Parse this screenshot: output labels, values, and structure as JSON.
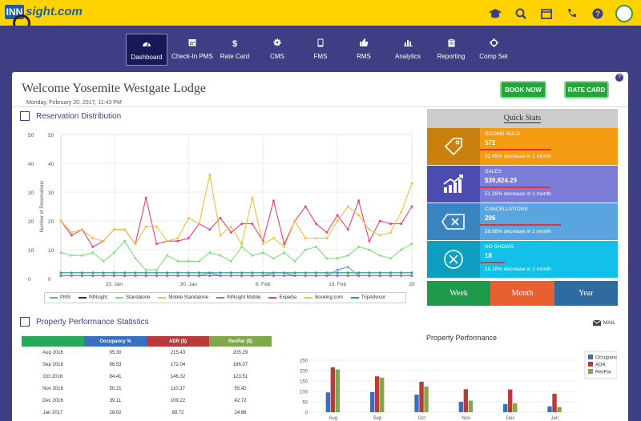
{
  "app": {
    "logo_box": "INN",
    "logo_word": "sight.com"
  },
  "nav": [
    {
      "label": "Dashboard",
      "icon": "dashboard-icon"
    },
    {
      "label": "Check-In PMS",
      "icon": "calendar-icon"
    },
    {
      "label": "Rate Card",
      "icon": "dollar-icon"
    },
    {
      "label": "CMS",
      "icon": "gear-icon"
    },
    {
      "label": "FMS",
      "icon": "tablet-icon"
    },
    {
      "label": "RMS",
      "icon": "thumbs-up-icon"
    },
    {
      "label": "Analytics",
      "icon": "bar-chart-icon"
    },
    {
      "label": "Reporting",
      "icon": "clipboard-icon"
    },
    {
      "label": "Comp Set",
      "icon": "crosshair-icon"
    }
  ],
  "header": {
    "welcome": "Welcome Yosemite Westgate Lodge",
    "date": "Monday, February 20, 2017, 11:43 PM",
    "book_now": "BOOK NOW",
    "rate_card": "RATE CARD",
    "help": "?"
  },
  "reservation": {
    "title": "Reservation Distribution",
    "ylabel": "Number of Reservations"
  },
  "quick_stats": {
    "title": "Quick Stats",
    "items": [
      {
        "label": "ROOMS SOLD",
        "value": "572",
        "change": "52.45% decrease in 1 month",
        "color": "#f39c12",
        "dark": "#c9800f",
        "icon": "tag-icon",
        "fill": 0.52
      },
      {
        "label": "SALES",
        "value": "$39,824.29",
        "change": "51.39% decrease in 1 month",
        "color": "#7b7bd8",
        "dark": "#4b4bb0",
        "icon": "growth-chart-icon",
        "fill": 0.51
      },
      {
        "label": "CANCELLATIONS",
        "value": "206",
        "change": "58.88% decrease in 1 month",
        "color": "#5aa5e0",
        "dark": "#3a85c0",
        "icon": "cancel-tag-icon",
        "fill": 0.59
      },
      {
        "label": "NO SHOWS",
        "value": "18",
        "change": "18.18% decrease in 1 month",
        "color": "#12c0e8",
        "dark": "#0e9ec0",
        "icon": "no-show-icon",
        "fill": 0.18
      }
    ],
    "tabs": [
      {
        "label": "Week",
        "color": "#1f9a4a"
      },
      {
        "label": "Month",
        "color": "#e86030"
      },
      {
        "label": "Year",
        "color": "#2e6ba0"
      }
    ]
  },
  "performance": {
    "title": "Property Performance Statistics",
    "mail": "MAIL",
    "columns": [
      "",
      "Occupancy %",
      "ADR ($)",
      "RevPar ($)"
    ],
    "column_colors": [
      "#28a85a",
      "#3a6fbf",
      "#b83a3a",
      "#7fa84a"
    ],
    "rows": [
      [
        "Aug 2016",
        "95.30",
        "215.43",
        "205.29"
      ],
      [
        "Sep 2016",
        "96.53",
        "172.04",
        "166.07"
      ],
      [
        "Oct 2016",
        "84.41",
        "146.32",
        "123.51"
      ],
      [
        "Nov 2016",
        "50.21",
        "110.37",
        "55.42"
      ],
      [
        "Dec 2016",
        "39.11",
        "109.22",
        "42.72"
      ],
      [
        "Jan 2017",
        "28.02",
        "88.72",
        "24.86"
      ]
    ]
  },
  "chart_data": [
    {
      "type": "line",
      "ylabel": "Number of Reservations",
      "ylim": [
        0,
        50
      ],
      "y_ticks": [
        0,
        10,
        20,
        30,
        40,
        50
      ],
      "x_tick_labels": [
        "23. Jan",
        "30. Jan",
        "6. Feb",
        "13. Feb",
        "20"
      ],
      "x_tick_positions": [
        5,
        12,
        19,
        26,
        33
      ],
      "grid": true,
      "legend_position": "bottom",
      "series": [
        {
          "name": "PMS",
          "color": "#5aa5e0",
          "values": [
            1,
            1,
            1,
            1,
            1,
            1,
            1,
            1,
            1,
            1,
            1,
            1,
            1,
            1,
            2,
            1,
            1,
            1,
            1,
            1,
            2,
            2,
            1,
            1,
            1,
            1,
            3,
            4,
            1,
            1,
            1,
            1,
            1,
            1
          ]
        },
        {
          "name": "INNsight",
          "color": "#333333",
          "values": [
            1,
            1,
            1,
            1,
            1,
            1,
            1,
            1,
            1,
            1,
            1,
            1,
            1,
            1,
            1,
            1,
            1,
            1,
            1,
            1,
            1,
            1,
            1,
            1,
            1,
            1,
            1,
            1,
            1,
            1,
            1,
            1,
            1,
            1
          ]
        },
        {
          "name": "Standalone",
          "color": "#7de07d",
          "values": [
            9,
            8,
            8,
            9,
            6,
            9,
            13,
            7,
            3,
            3,
            8,
            6,
            6,
            6,
            9,
            8,
            6,
            11,
            8,
            9,
            7,
            9,
            6,
            10,
            11,
            7,
            7,
            8,
            11,
            10,
            8,
            7,
            10,
            12
          ]
        },
        {
          "name": "Mobile Standalone",
          "color": "#f0c060",
          "values": [
            2,
            2,
            2,
            2,
            2,
            2,
            2,
            2,
            2,
            2,
            2,
            2,
            2,
            2,
            2,
            2,
            2,
            2,
            2,
            2,
            2,
            2,
            2,
            2,
            2,
            2,
            2,
            2,
            2,
            2,
            2,
            2,
            2,
            2
          ]
        },
        {
          "name": "INNsight Mobile",
          "color": "#7b7bd8",
          "values": [
            1,
            1,
            1,
            1,
            1,
            1,
            1,
            1,
            1,
            1,
            1,
            1,
            1,
            1,
            1,
            1,
            1,
            1,
            1,
            1,
            1,
            1,
            1,
            1,
            1,
            1,
            1,
            1,
            1,
            1,
            1,
            1,
            1,
            1
          ]
        },
        {
          "name": "Expedia",
          "color": "#e8407a",
          "values": [
            20,
            15,
            17,
            11,
            13,
            17,
            17,
            12,
            28,
            12,
            13,
            13,
            14,
            19,
            17,
            21,
            16,
            19,
            19,
            13,
            27,
            12,
            20,
            25,
            19,
            16,
            22,
            17,
            27,
            13,
            20,
            19,
            19,
            25
          ]
        },
        {
          "name": "Booking.com",
          "color": "#f0c040",
          "values": [
            20,
            16,
            17,
            14,
            13,
            17,
            17,
            12,
            18,
            18,
            13,
            14,
            21,
            19,
            36,
            15,
            18,
            12,
            28,
            12,
            14,
            11,
            20,
            14,
            14,
            14,
            20,
            25,
            22,
            17,
            15,
            16,
            23,
            33
          ]
        },
        {
          "name": "TripAdvisor",
          "color": "#2a9a8a",
          "values": [
            2,
            2,
            2,
            2,
            2,
            2,
            2,
            2,
            2,
            2,
            2,
            2,
            2,
            2,
            2,
            2,
            2,
            2,
            2,
            2,
            2,
            2,
            2,
            2,
            2,
            2,
            2,
            2,
            2,
            2,
            2,
            2,
            2,
            2
          ]
        }
      ]
    },
    {
      "type": "bar",
      "title": "Property Performance",
      "categories": [
        "Aug",
        "Sep",
        "Oct",
        "Nov",
        "Dec",
        "Jan"
      ],
      "ylim": [
        0,
        300
      ],
      "y_ticks": [
        0,
        50,
        100,
        150,
        200,
        250
      ],
      "legend_position": "right",
      "series": [
        {
          "name": "Occupancy",
          "color": "#3a6fbf",
          "values": [
            95.3,
            96.53,
            84.41,
            50.21,
            39.11,
            28.02
          ]
        },
        {
          "name": "ADR",
          "color": "#b83a3a",
          "values": [
            215.43,
            172.04,
            146.32,
            110.37,
            109.22,
            88.72
          ]
        },
        {
          "name": "RevPar",
          "color": "#7fa84a",
          "values": [
            205.29,
            166.07,
            123.51,
            55.42,
            42.72,
            24.86
          ]
        }
      ]
    }
  ]
}
